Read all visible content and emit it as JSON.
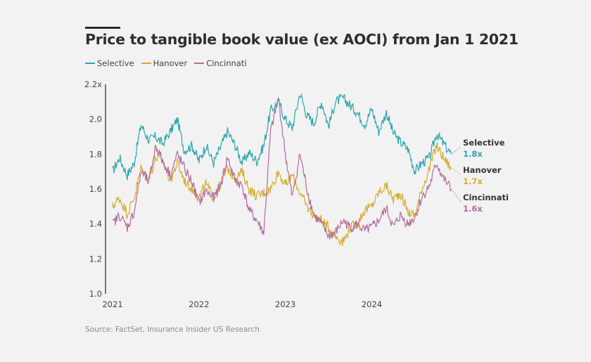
{
  "title": "Price to tangible book value (ex AOCI) from Jan 1 2021",
  "source": "Source: FactSet, Insurance Insider US Research",
  "colors": {
    "Selective": "#2aa6ad",
    "Hanover": "#d4ac2b",
    "Cincinnati": "#b26b9f",
    "axis": "#777777"
  },
  "chart_data": {
    "type": "line",
    "title": "Price to tangible book value (ex AOCI) from Jan 1 2021",
    "xlabel": "",
    "ylabel": "",
    "ylim": [
      1.0,
      2.2
    ],
    "xlim": [
      2021.0,
      2024.95
    ],
    "y_ticks": [
      "1.0",
      "1.2",
      "1.4",
      "1.6",
      "1.8",
      "2.0",
      "2.2x"
    ],
    "y_tick_values": [
      1.0,
      1.2,
      1.4,
      1.6,
      1.8,
      2.0,
      2.2
    ],
    "x_ticks": [
      "2021",
      "2022",
      "2023",
      "2024"
    ],
    "x_tick_values": [
      2021,
      2022,
      2023,
      2024
    ],
    "grid": false,
    "legend": "top-left",
    "x": [
      2021.0,
      2021.08,
      2021.17,
      2021.25,
      2021.33,
      2021.42,
      2021.5,
      2021.58,
      2021.67,
      2021.75,
      2021.83,
      2021.92,
      2022.0,
      2022.08,
      2022.17,
      2022.25,
      2022.33,
      2022.42,
      2022.5,
      2022.58,
      2022.67,
      2022.75,
      2022.83,
      2022.92,
      2023.0,
      2023.08,
      2023.17,
      2023.25,
      2023.33,
      2023.42,
      2023.5,
      2023.58,
      2023.67,
      2023.75,
      2023.83,
      2023.92,
      2024.0,
      2024.08,
      2024.17,
      2024.25,
      2024.33,
      2024.42,
      2024.5,
      2024.58,
      2024.67,
      2024.75,
      2024.83,
      2024.92
    ],
    "series": [
      {
        "name": "Selective",
        "end_label": "1.8x",
        "values": [
          1.7,
          1.78,
          1.68,
          1.75,
          1.97,
          1.88,
          1.9,
          1.86,
          1.93,
          2.0,
          1.82,
          1.85,
          1.76,
          1.85,
          1.75,
          1.84,
          1.93,
          1.85,
          1.75,
          1.81,
          1.76,
          1.85,
          2.05,
          2.1,
          2.0,
          1.95,
          2.15,
          2.02,
          1.98,
          2.1,
          1.96,
          2.1,
          2.12,
          2.08,
          2.04,
          1.97,
          2.06,
          1.93,
          2.04,
          1.92,
          1.87,
          1.83,
          1.7,
          1.75,
          1.78,
          1.92,
          1.86,
          1.8
        ]
      },
      {
        "name": "Hanover",
        "end_label": "1.7x",
        "values": [
          1.5,
          1.55,
          1.46,
          1.55,
          1.72,
          1.66,
          1.78,
          1.76,
          1.65,
          1.75,
          1.65,
          1.6,
          1.55,
          1.63,
          1.55,
          1.63,
          1.72,
          1.66,
          1.7,
          1.6,
          1.56,
          1.58,
          1.6,
          1.7,
          1.62,
          1.68,
          1.58,
          1.5,
          1.45,
          1.42,
          1.38,
          1.33,
          1.3,
          1.38,
          1.4,
          1.48,
          1.5,
          1.58,
          1.62,
          1.54,
          1.58,
          1.47,
          1.45,
          1.6,
          1.72,
          1.85,
          1.78,
          1.72
        ]
      },
      {
        "name": "Cincinnati",
        "end_label": "1.6x",
        "values": [
          1.4,
          1.45,
          1.38,
          1.47,
          1.7,
          1.64,
          1.85,
          1.76,
          1.68,
          1.8,
          1.72,
          1.64,
          1.52,
          1.59,
          1.55,
          1.62,
          1.78,
          1.65,
          1.62,
          1.48,
          1.42,
          1.35,
          1.93,
          2.12,
          1.8,
          1.55,
          1.8,
          1.6,
          1.45,
          1.4,
          1.33,
          1.35,
          1.42,
          1.38,
          1.4,
          1.36,
          1.38,
          1.42,
          1.49,
          1.38,
          1.45,
          1.4,
          1.44,
          1.55,
          1.62,
          1.75,
          1.66,
          1.6
        ]
      }
    ]
  }
}
